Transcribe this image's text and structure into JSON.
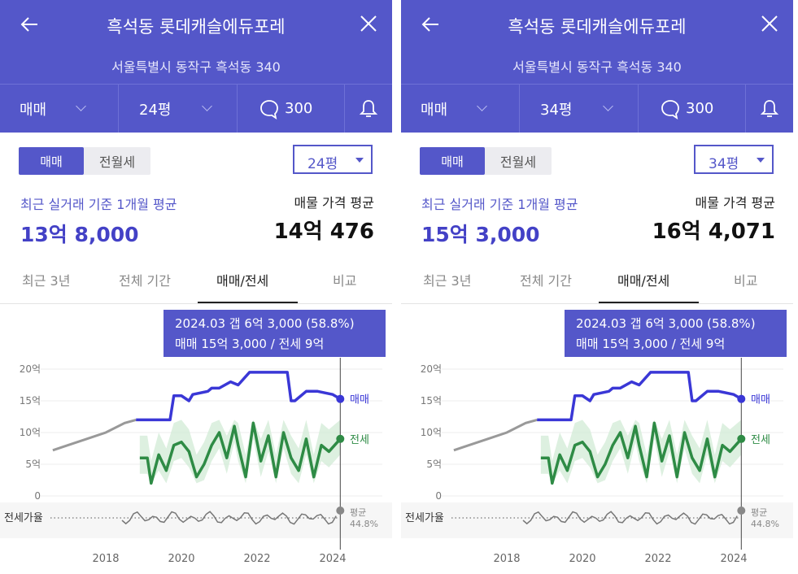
{
  "panels": [
    {
      "header": {
        "title": "흑석동 롯데캐슬에듀포레",
        "address": "서울특별시 동작구 흑석동 340",
        "trade_type": "매매",
        "size": "24평",
        "comment_count": "300"
      },
      "segment": {
        "active": "매매",
        "inactive": "전월세"
      },
      "size_select": "24평",
      "recent": {
        "label": "최근 실거래 기준 1개월 평균",
        "value": "13억 8,000"
      },
      "listing": {
        "label": "매물 가격 평균",
        "value": "14억 476"
      },
      "period_tabs": [
        "최근 3년",
        "전체 기간",
        "매매/전세",
        "비교"
      ],
      "tooltip": {
        "line1": "2024.03  갭 6억 3,000 (58.8%)",
        "line2": "매매 15억 3,000 / 전세 9억"
      },
      "chart_labels": {
        "y_ticks": [
          "20억",
          "15억",
          "10억",
          "5억",
          "0"
        ],
        "ratio_label": "전세가율",
        "x_ticks": [
          "2018",
          "2020",
          "2022",
          "2024"
        ],
        "legend_sale": "매매",
        "legend_jeonse": "전세",
        "legend_avg": "평균",
        "avg_value": "44.8%"
      }
    },
    {
      "header": {
        "title": "흑석동 롯데캐슬에듀포레",
        "address": "서울특별시 동작구 흑석동 340",
        "trade_type": "매매",
        "size": "34평",
        "comment_count": "300"
      },
      "segment": {
        "active": "매매",
        "inactive": "전월세"
      },
      "size_select": "34평",
      "recent": {
        "label": "최근 실거래 기준 1개월 평균",
        "value": "15억 3,000"
      },
      "listing": {
        "label": "매물 가격 평균",
        "value": "16억 4,071"
      },
      "period_tabs": [
        "최근 3년",
        "전체 기간",
        "매매/전세",
        "비교"
      ],
      "tooltip": {
        "line1": "2024.03  갭 6억 3,000 (58.8%)",
        "line2": "매매 15억 3,000 / 전세 9억"
      },
      "chart_labels": {
        "y_ticks": [
          "20억",
          "15억",
          "10억",
          "5억",
          "0"
        ],
        "ratio_label": "전세가율",
        "x_ticks": [
          "2018",
          "2020",
          "2022",
          "2024"
        ],
        "legend_sale": "매매",
        "legend_jeonse": "전세",
        "legend_avg": "평균",
        "avg_value": "44.8%"
      }
    }
  ],
  "colors": {
    "brand": "#5457c9",
    "sale_line": "#3a37d6",
    "jeonse_line": "#2e8b45",
    "jeonse_band": "#cfe9d3",
    "history_line": "#999999"
  },
  "chart_data": [
    {
      "type": "line",
      "title": "",
      "ylabel": "",
      "y_unit": "억",
      "ylim": [
        0,
        20
      ],
      "x_ticks": [
        2018,
        2020,
        2022,
        2024
      ],
      "series": [
        {
          "name": "매매",
          "x": [
            2016.6,
            2017.0,
            2017.5,
            2018.0,
            2018.5,
            2018.8,
            2019.2,
            2019.7,
            2019.8,
            2020.0,
            2020.2,
            2020.3,
            2020.7,
            2020.8,
            2021.0,
            2021.3,
            2021.5,
            2021.8,
            2022.0,
            2022.2,
            2022.8,
            2022.9,
            2023.0,
            2023.3,
            2023.6,
            2024.0,
            2024.2
          ],
          "y": [
            7.2,
            8.0,
            9.0,
            10.0,
            11.5,
            12.0,
            12.0,
            12.0,
            15.8,
            15.8,
            15.0,
            16.0,
            16.5,
            17.0,
            17.0,
            18.0,
            17.5,
            19.5,
            19.5,
            19.5,
            19.5,
            15.0,
            15.0,
            16.5,
            16.5,
            16.0,
            15.3
          ]
        },
        {
          "name": "전세",
          "x": [
            2018.9,
            2019.1,
            2019.2,
            2019.4,
            2019.6,
            2019.8,
            2020.0,
            2020.2,
            2020.4,
            2020.6,
            2020.8,
            2021.0,
            2021.2,
            2021.4,
            2021.5,
            2021.7,
            2021.9,
            2022.1,
            2022.3,
            2022.5,
            2022.7,
            2022.9,
            2023.1,
            2023.3,
            2023.5,
            2023.7,
            2023.9,
            2024.2
          ],
          "y": [
            6.0,
            6.0,
            2.0,
            6.5,
            4.0,
            8.0,
            8.5,
            7.0,
            3.0,
            5.0,
            8.0,
            10.0,
            6.0,
            11.0,
            8.0,
            3.0,
            11.5,
            5.5,
            9.5,
            3.0,
            10.0,
            6.0,
            4.0,
            9.0,
            3.0,
            8.0,
            7.0,
            9.0
          ]
        }
      ],
      "ratio_series": {
        "name": "전세가율",
        "average": 44.8
      }
    },
    {
      "type": "line",
      "title": "",
      "ylabel": "",
      "y_unit": "억",
      "ylim": [
        0,
        20
      ],
      "x_ticks": [
        2018,
        2020,
        2022,
        2024
      ],
      "series": [
        {
          "name": "매매",
          "x": [
            2016.6,
            2017.0,
            2017.5,
            2018.0,
            2018.5,
            2018.8,
            2019.2,
            2019.7,
            2019.8,
            2020.0,
            2020.2,
            2020.3,
            2020.7,
            2020.8,
            2021.0,
            2021.3,
            2021.5,
            2021.8,
            2022.0,
            2022.2,
            2022.8,
            2022.9,
            2023.0,
            2023.3,
            2023.6,
            2024.0,
            2024.2
          ],
          "y": [
            7.2,
            8.0,
            9.0,
            10.0,
            11.5,
            12.0,
            12.0,
            12.0,
            15.8,
            15.8,
            15.0,
            16.0,
            16.5,
            17.0,
            17.0,
            18.0,
            17.5,
            19.5,
            19.5,
            19.5,
            19.5,
            15.0,
            15.0,
            16.5,
            16.5,
            16.0,
            15.3
          ]
        },
        {
          "name": "전세",
          "x": [
            2018.9,
            2019.1,
            2019.2,
            2019.4,
            2019.6,
            2019.8,
            2020.0,
            2020.2,
            2020.4,
            2020.6,
            2020.8,
            2021.0,
            2021.2,
            2021.4,
            2021.5,
            2021.7,
            2021.9,
            2022.1,
            2022.3,
            2022.5,
            2022.7,
            2022.9,
            2023.1,
            2023.3,
            2023.5,
            2023.7,
            2023.9,
            2024.2
          ],
          "y": [
            6.0,
            6.0,
            2.0,
            6.5,
            4.0,
            8.0,
            8.5,
            7.0,
            3.0,
            5.0,
            8.0,
            10.0,
            6.0,
            11.0,
            8.0,
            3.0,
            11.5,
            5.5,
            9.5,
            3.0,
            10.0,
            6.0,
            4.0,
            9.0,
            3.0,
            8.0,
            7.0,
            9.0
          ]
        }
      ],
      "ratio_series": {
        "name": "전세가율",
        "average": 44.8
      }
    }
  ]
}
